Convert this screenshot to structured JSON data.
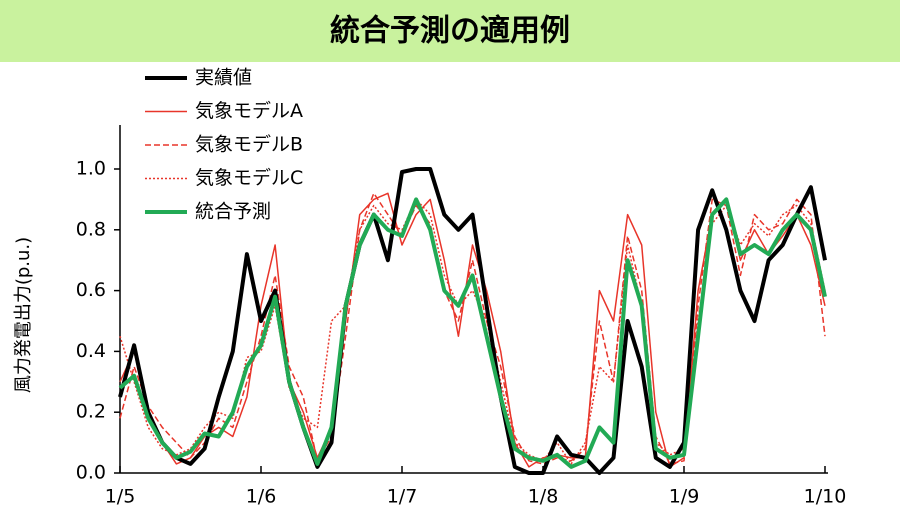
{
  "chart_data": {
    "type": "line",
    "title": "統合予測の適用例",
    "ylabel": "風力発電出力(p.u.)",
    "legend": "upper left",
    "x": [
      0,
      0.1,
      0.2,
      0.3,
      0.4,
      0.5,
      0.6,
      0.7,
      0.8,
      0.9,
      1,
      1.1,
      1.2,
      1.3,
      1.4,
      1.5,
      1.6,
      1.7,
      1.8,
      1.9,
      2,
      2.1,
      2.2,
      2.3,
      2.4,
      2.5,
      2.6,
      2.7,
      2.8,
      2.9,
      3,
      3.1,
      3.2,
      3.3,
      3.4,
      3.5,
      3.6,
      3.7,
      3.8,
      3.9,
      4,
      4.1,
      4.2,
      4.3,
      4.4,
      4.5,
      4.6,
      4.7,
      4.8,
      4.9,
      5
    ],
    "xlim": [
      0,
      5
    ],
    "xticks": [
      {
        "value": 0,
        "label": "1/5"
      },
      {
        "value": 1,
        "label": "1/6"
      },
      {
        "value": 2,
        "label": "1/7"
      },
      {
        "value": 3,
        "label": "1/8"
      },
      {
        "value": 4,
        "label": "1/9"
      },
      {
        "value": 5,
        "label": "1/10"
      }
    ],
    "ylim": [
      0,
      1.1
    ],
    "yticks": [
      {
        "value": 0,
        "label": "0.0"
      },
      0.2,
      0.4,
      0.6,
      0.8,
      {
        "value": 1,
        "label": "1.0"
      }
    ],
    "series": [
      {
        "name": "実績値",
        "color": "#000000",
        "style": "solid",
        "line_width": 4,
        "values": [
          0.25,
          0.42,
          0.2,
          0.1,
          0.05,
          0.03,
          0.08,
          0.25,
          0.4,
          0.72,
          0.5,
          0.6,
          0.3,
          0.15,
          0.02,
          0.1,
          0.55,
          0.75,
          0.85,
          0.7,
          0.99,
          1,
          1,
          0.85,
          0.8,
          0.85,
          0.55,
          0.25,
          0.02,
          0,
          0,
          0.12,
          0.06,
          0.05,
          0,
          0.05,
          0.5,
          0.35,
          0.05,
          0.02,
          0.1,
          0.8,
          0.93,
          0.8,
          0.6,
          0.5,
          0.7,
          0.75,
          0.85,
          0.94,
          0.7
        ]
      },
      {
        "name": "気象モデルA",
        "color": "#e8352a",
        "style": "solid",
        "line_width": 1.5,
        "values": [
          0.3,
          0.4,
          0.2,
          0.1,
          0.03,
          0.05,
          0.12,
          0.15,
          0.12,
          0.25,
          0.55,
          0.75,
          0.3,
          0.2,
          0.05,
          0.15,
          0.5,
          0.85,
          0.9,
          0.92,
          0.75,
          0.85,
          0.9,
          0.7,
          0.45,
          0.75,
          0.6,
          0.4,
          0.1,
          0.02,
          0.05,
          0.06,
          0.05,
          0.05,
          0.6,
          0.5,
          0.85,
          0.75,
          0.2,
          0.02,
          0.05,
          0.6,
          0.85,
          0.9,
          0.7,
          0.8,
          0.72,
          0.78,
          0.85,
          0.75,
          0.55
        ]
      },
      {
        "name": "気象モデルB",
        "color": "#e8352a",
        "style": "dashed",
        "line_width": 1.5,
        "values": [
          0.18,
          0.35,
          0.22,
          0.15,
          0.1,
          0.05,
          0.1,
          0.18,
          0.15,
          0.3,
          0.45,
          0.65,
          0.35,
          0.25,
          0.04,
          0.12,
          0.45,
          0.8,
          0.92,
          0.85,
          0.78,
          0.88,
          0.82,
          0.6,
          0.5,
          0.7,
          0.5,
          0.35,
          0.12,
          0.04,
          0.03,
          0.05,
          0.04,
          0.08,
          0.5,
          0.3,
          0.78,
          0.6,
          0.12,
          0.03,
          0.04,
          0.55,
          0.9,
          0.88,
          0.65,
          0.85,
          0.8,
          0.82,
          0.9,
          0.85,
          0.45
        ]
      },
      {
        "name": "気象モデルC",
        "color": "#e8352a",
        "style": "dotted",
        "line_width": 1.5,
        "values": [
          0.45,
          0.3,
          0.15,
          0.08,
          0.06,
          0.08,
          0.15,
          0.2,
          0.18,
          0.38,
          0.4,
          0.55,
          0.28,
          0.18,
          0.15,
          0.5,
          0.55,
          0.8,
          0.88,
          0.82,
          0.8,
          0.9,
          0.85,
          0.65,
          0.55,
          0.6,
          0.5,
          0.3,
          0.1,
          0.06,
          0.04,
          0.1,
          0.03,
          0.1,
          0.35,
          0.3,
          0.75,
          0.55,
          0.1,
          0.06,
          0.08,
          0.5,
          0.82,
          0.88,
          0.75,
          0.82,
          0.78,
          0.85,
          0.88,
          0.82,
          0.6
        ]
      },
      {
        "name": "統合予測",
        "color": "#22aa55",
        "style": "solid",
        "line_width": 4,
        "values": [
          0.28,
          0.32,
          0.18,
          0.1,
          0.05,
          0.07,
          0.13,
          0.12,
          0.2,
          0.35,
          0.42,
          0.58,
          0.3,
          0.15,
          0.03,
          0.15,
          0.55,
          0.75,
          0.85,
          0.8,
          0.78,
          0.9,
          0.8,
          0.6,
          0.55,
          0.65,
          0.45,
          0.25,
          0.08,
          0.05,
          0.04,
          0.06,
          0.02,
          0.04,
          0.15,
          0.1,
          0.7,
          0.55,
          0.08,
          0.05,
          0.06,
          0.45,
          0.85,
          0.9,
          0.72,
          0.75,
          0.72,
          0.8,
          0.85,
          0.8,
          0.58
        ]
      }
    ]
  }
}
